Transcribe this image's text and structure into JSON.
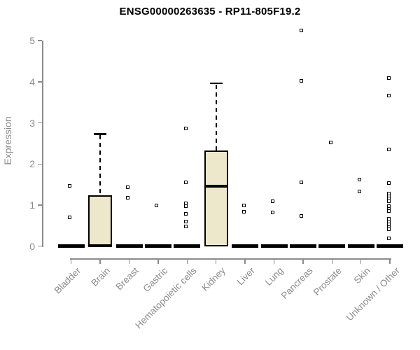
{
  "chart_data": {
    "type": "boxplot",
    "title": "ENSG00000263635 - RP11-805F19.2",
    "ylabel": "Expression",
    "xlabel": "",
    "ylim": [
      0,
      5.4
    ],
    "yticks": [
      0,
      1,
      2,
      3,
      4,
      5
    ],
    "grid": false,
    "legend": "none",
    "categories": [
      "Bladder",
      "Brain",
      "Breast",
      "Gastric",
      "Hematopoietic cells",
      "Kidney",
      "Liver",
      "Lung",
      "Pancreas",
      "Prostate",
      "Skin",
      "Unknown / Other"
    ],
    "boxes": [
      {
        "category": "Bladder",
        "q1": 0,
        "median": 0,
        "q3": 0,
        "whisker_low": 0,
        "whisker_high": 0,
        "outliers": [
          1.46,
          0.7
        ]
      },
      {
        "category": "Brain",
        "q1": 0,
        "median": 0.02,
        "q3": 1.24,
        "whisker_low": 0,
        "whisker_high": 2.73,
        "outliers": []
      },
      {
        "category": "Breast",
        "q1": 0,
        "median": 0,
        "q3": 0,
        "whisker_low": 0,
        "whisker_high": 0,
        "outliers": [
          1.43,
          1.18
        ]
      },
      {
        "category": "Gastric",
        "q1": 0,
        "median": 0,
        "q3": 0,
        "whisker_low": 0,
        "whisker_high": 0,
        "outliers": [
          1.0
        ]
      },
      {
        "category": "Hematopoietic cells",
        "q1": 0,
        "median": 0,
        "q3": 0,
        "whisker_low": 0,
        "whisker_high": 0,
        "outliers": [
          2.87,
          1.56,
          1.05,
          0.97,
          0.78,
          0.6,
          0.48
        ]
      },
      {
        "category": "Kidney",
        "q1": 0,
        "median": 1.46,
        "q3": 2.33,
        "whisker_low": 0,
        "whisker_high": 3.97,
        "outliers": []
      },
      {
        "category": "Liver",
        "q1": 0,
        "median": 0,
        "q3": 0,
        "whisker_low": 0,
        "whisker_high": 0,
        "outliers": [
          1.0,
          0.84
        ]
      },
      {
        "category": "Lung",
        "q1": 0,
        "median": 0,
        "q3": 0,
        "whisker_low": 0,
        "whisker_high": 0,
        "outliers": [
          1.1,
          0.82
        ]
      },
      {
        "category": "Pancreas",
        "q1": 0,
        "median": 0,
        "q3": 0,
        "whisker_low": 0,
        "whisker_high": 0,
        "outliers": [
          5.25,
          4.03,
          1.55,
          0.73
        ]
      },
      {
        "category": "Prostate",
        "q1": 0,
        "median": 0,
        "q3": 0,
        "whisker_low": 0,
        "whisker_high": 0,
        "outliers": [
          2.53
        ]
      },
      {
        "category": "Skin",
        "q1": 0,
        "median": 0,
        "q3": 0,
        "whisker_low": 0,
        "whisker_high": 0,
        "outliers": [
          1.62,
          1.33
        ]
      },
      {
        "category": "Unknown / Other",
        "q1": 0,
        "median": 0,
        "q3": 0,
        "whisker_low": 0,
        "whisker_high": 0,
        "outliers": [
          4.1,
          3.67,
          2.36,
          1.53,
          1.28,
          1.22,
          1.16,
          1.09,
          0.97,
          0.9,
          0.85,
          0.67,
          0.6,
          0.53,
          0.46,
          0.41,
          0.19
        ]
      }
    ],
    "colors": {
      "background": "#FFFFFF",
      "box_fill": "#EDE7CB",
      "box_border": "#000000",
      "median": "#000000",
      "whisker": "#000000",
      "outlier_border": "#000000",
      "outlier_fill": "#FFFFFF",
      "axis": "#8C8C8C",
      "tick_label": "#8C8C8C",
      "title": "#000000"
    }
  }
}
